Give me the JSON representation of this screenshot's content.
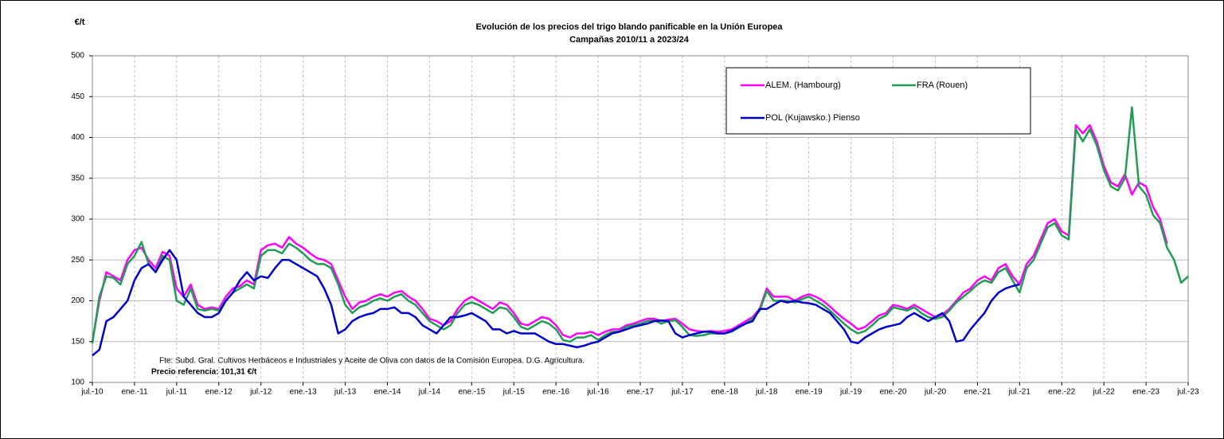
{
  "chart_data": {
    "type": "line",
    "title": "Evolución de los precios del trigo blando panificable en la Unión Europea",
    "subtitle": "Campañas 2010/11 a 2023/24",
    "y_label": "€/t",
    "note": "Fte: Subd. Gral. Cultivos Herbáceos e Industriales y Aceite de Oliva con datos de la Comisión Europea. D.G. Agricultura.",
    "reference": "Precio referencia: 101,31 €/t",
    "ylim": [
      100,
      500
    ],
    "yticks": [
      100,
      150,
      200,
      250,
      300,
      350,
      400,
      450,
      500
    ],
    "xlim": [
      "2010-07",
      "2023-07"
    ],
    "xticks": [
      {
        "value": "2010-07",
        "label": "jul.-10"
      },
      {
        "value": "2011-01",
        "label": "ene.-11"
      },
      {
        "value": "2011-07",
        "label": "jul.-11"
      },
      {
        "value": "2012-01",
        "label": "ene.-12"
      },
      {
        "value": "2012-07",
        "label": "jul.-12"
      },
      {
        "value": "2013-01",
        "label": "ene.-13"
      },
      {
        "value": "2013-07",
        "label": "jul.-13"
      },
      {
        "value": "2014-01",
        "label": "ene.-14"
      },
      {
        "value": "2014-07",
        "label": "jul.-14"
      },
      {
        "value": "2015-01",
        "label": "ene.-15"
      },
      {
        "value": "2015-07",
        "label": "jul.-15"
      },
      {
        "value": "2016-01",
        "label": "ene.-16"
      },
      {
        "value": "2016-07",
        "label": "jul.-16"
      },
      {
        "value": "2017-01",
        "label": "ene.-17"
      },
      {
        "value": "2017-07",
        "label": "jul.-17"
      },
      {
        "value": "2018-01",
        "label": "ene.-18"
      },
      {
        "value": "2018-07",
        "label": "jul.-18"
      },
      {
        "value": "2019-01",
        "label": "ene.-19"
      },
      {
        "value": "2019-07",
        "label": "jul.-19"
      },
      {
        "value": "2020-01",
        "label": "ene.-20"
      },
      {
        "value": "2020-07",
        "label": "jul.-20"
      },
      {
        "value": "2021-01",
        "label": "ene.-21"
      },
      {
        "value": "2021-07",
        "label": "jul.-21"
      },
      {
        "value": "2022-01",
        "label": "ene.-22"
      },
      {
        "value": "2022-07",
        "label": "jul.-22"
      },
      {
        "value": "2023-01",
        "label": "ene.-23"
      },
      {
        "value": "2023-07",
        "label": "jul.-23"
      }
    ],
    "grid": true,
    "x": [
      "2010-07",
      "2010-08",
      "2010-09",
      "2010-10",
      "2010-11",
      "2010-12",
      "2011-01",
      "2011-02",
      "2011-03",
      "2011-04",
      "2011-05",
      "2011-06",
      "2011-07",
      "2011-08",
      "2011-09",
      "2011-10",
      "2011-11",
      "2011-12",
      "2012-01",
      "2012-02",
      "2012-03",
      "2012-04",
      "2012-05",
      "2012-06",
      "2012-07",
      "2012-08",
      "2012-09",
      "2012-10",
      "2012-11",
      "2012-12",
      "2013-01",
      "2013-02",
      "2013-03",
      "2013-04",
      "2013-05",
      "2013-06",
      "2013-07",
      "2013-08",
      "2013-09",
      "2013-10",
      "2013-11",
      "2013-12",
      "2014-01",
      "2014-02",
      "2014-03",
      "2014-04",
      "2014-05",
      "2014-06",
      "2014-07",
      "2014-08",
      "2014-09",
      "2014-10",
      "2014-11",
      "2014-12",
      "2015-01",
      "2015-02",
      "2015-03",
      "2015-04",
      "2015-05",
      "2015-06",
      "2015-07",
      "2015-08",
      "2015-09",
      "2015-10",
      "2015-11",
      "2015-12",
      "2016-01",
      "2016-02",
      "2016-03",
      "2016-04",
      "2016-05",
      "2016-06",
      "2016-07",
      "2016-08",
      "2016-09",
      "2016-10",
      "2016-11",
      "2016-12",
      "2017-01",
      "2017-02",
      "2017-03",
      "2017-04",
      "2017-05",
      "2017-06",
      "2017-07",
      "2017-08",
      "2017-09",
      "2017-10",
      "2017-11",
      "2017-12",
      "2018-01",
      "2018-02",
      "2018-03",
      "2018-04",
      "2018-05",
      "2018-06",
      "2018-07",
      "2018-08",
      "2018-09",
      "2018-10",
      "2018-11",
      "2018-12",
      "2019-01",
      "2019-02",
      "2019-03",
      "2019-04",
      "2019-05",
      "2019-06",
      "2019-07",
      "2019-08",
      "2019-09",
      "2019-10",
      "2019-11",
      "2019-12",
      "2020-01",
      "2020-02",
      "2020-03",
      "2020-04",
      "2020-05",
      "2020-06",
      "2020-07",
      "2020-08",
      "2020-09",
      "2020-10",
      "2020-11",
      "2020-12",
      "2021-01",
      "2021-02",
      "2021-03",
      "2021-04",
      "2021-05",
      "2021-06",
      "2021-07",
      "2021-08",
      "2021-09",
      "2021-10",
      "2021-11",
      "2021-12",
      "2022-01",
      "2022-02",
      "2022-03",
      "2022-04",
      "2022-05",
      "2022-06",
      "2022-07",
      "2022-08",
      "2022-09",
      "2022-10",
      "2022-11",
      "2022-12",
      "2023-01",
      "2023-02",
      "2023-03",
      "2023-04",
      "2023-05",
      "2023-06",
      "2023-07"
    ],
    "series": [
      {
        "name": "ALEM. (Hambourg)",
        "color": "#ff00ff",
        "values": [
          150,
          200,
          235,
          230,
          225,
          250,
          262,
          265,
          250,
          240,
          260,
          255,
          215,
          205,
          220,
          195,
          190,
          192,
          190,
          205,
          215,
          218,
          225,
          220,
          262,
          268,
          270,
          265,
          278,
          270,
          265,
          258,
          252,
          250,
          245,
          225,
          205,
          190,
          198,
          200,
          205,
          208,
          205,
          210,
          212,
          205,
          200,
          190,
          178,
          175,
          170,
          175,
          190,
          200,
          205,
          200,
          195,
          190,
          198,
          195,
          185,
          172,
          170,
          175,
          180,
          178,
          170,
          158,
          155,
          160,
          160,
          162,
          158,
          162,
          165,
          165,
          170,
          172,
          175,
          178,
          178,
          175,
          177,
          178,
          172,
          165,
          163,
          162,
          163,
          162,
          163,
          165,
          170,
          175,
          180,
          190,
          215,
          205,
          205,
          205,
          200,
          205,
          208,
          205,
          200,
          193,
          185,
          178,
          172,
          165,
          168,
          175,
          182,
          185,
          195,
          193,
          190,
          195,
          190,
          185,
          180,
          183,
          190,
          200,
          210,
          215,
          225,
          230,
          225,
          240,
          245,
          230,
          220,
          245,
          255,
          275,
          295,
          300,
          285,
          280,
          415,
          405,
          415,
          395,
          365,
          345,
          340,
          355,
          330,
          345,
          340,
          315,
          300,
          270,
          null,
          null,
          null
        ]
      },
      {
        "name": "FRA (Rouen)",
        "color": "#1e9e50",
        "values": [
          148,
          205,
          230,
          228,
          220,
          245,
          255,
          272,
          245,
          235,
          255,
          250,
          200,
          195,
          215,
          190,
          188,
          190,
          188,
          200,
          210,
          215,
          220,
          215,
          255,
          262,
          262,
          258,
          270,
          265,
          258,
          250,
          245,
          245,
          240,
          220,
          195,
          185,
          192,
          195,
          200,
          203,
          200,
          205,
          208,
          200,
          195,
          185,
          175,
          170,
          165,
          170,
          185,
          195,
          198,
          195,
          190,
          185,
          192,
          190,
          180,
          168,
          165,
          170,
          175,
          172,
          165,
          152,
          150,
          155,
          155,
          158,
          152,
          158,
          162,
          162,
          168,
          170,
          172,
          175,
          176,
          172,
          175,
          176,
          168,
          158,
          157,
          158,
          160,
          160,
          160,
          162,
          167,
          172,
          178,
          188,
          212,
          200,
          200,
          200,
          198,
          202,
          205,
          200,
          195,
          188,
          180,
          172,
          165,
          160,
          163,
          170,
          178,
          182,
          192,
          190,
          188,
          192,
          185,
          180,
          178,
          180,
          188,
          198,
          205,
          212,
          220,
          225,
          222,
          235,
          240,
          225,
          210,
          240,
          250,
          270,
          290,
          295,
          280,
          275,
          410,
          395,
          410,
          390,
          360,
          340,
          335,
          350,
          437,
          340,
          330,
          305,
          295,
          265,
          250,
          222,
          230
        ]
      },
      {
        "name": "POL (Kujawsko.) Pienso",
        "color": "#0000cc",
        "values": [
          133,
          140,
          175,
          180,
          190,
          200,
          225,
          240,
          245,
          235,
          250,
          262,
          250,
          205,
          195,
          185,
          180,
          180,
          185,
          200,
          210,
          225,
          235,
          225,
          230,
          228,
          240,
          250,
          250,
          245,
          240,
          235,
          230,
          215,
          195,
          160,
          165,
          175,
          180,
          183,
          185,
          190,
          190,
          192,
          185,
          185,
          180,
          170,
          165,
          160,
          170,
          180,
          180,
          182,
          185,
          180,
          175,
          165,
          165,
          160,
          163,
          160,
          160,
          160,
          155,
          150,
          147,
          147,
          145,
          143,
          145,
          148,
          150,
          155,
          160,
          162,
          165,
          168,
          170,
          172,
          175,
          176,
          175,
          160,
          155,
          158,
          160,
          162,
          162,
          160,
          160,
          163,
          168,
          172,
          175,
          190,
          190,
          195,
          200,
          198,
          200,
          198,
          197,
          195,
          190,
          185,
          175,
          165,
          150,
          148,
          155,
          160,
          165,
          168,
          170,
          172,
          180,
          185,
          180,
          175,
          180,
          185,
          175,
          150,
          152,
          165,
          175,
          185,
          200,
          210,
          215,
          218,
          220,
          null,
          null,
          null,
          null,
          null,
          null,
          null,
          null,
          null,
          null,
          null,
          null,
          null,
          null,
          null,
          null,
          null,
          null,
          null,
          null,
          null,
          null,
          null,
          null
        ]
      }
    ]
  }
}
